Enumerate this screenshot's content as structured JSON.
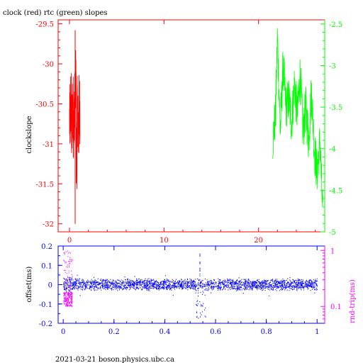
{
  "charts": {
    "clock_rtc_slopes": {
      "type": "line",
      "title": "clock (red) rtc (green) slopes",
      "xlabel": "",
      "ylabel": "clockslope",
      "xlim": [
        -1.2,
        27
      ],
      "xticks": [
        "0",
        "10",
        "20"
      ],
      "xtick_values": [
        0,
        10,
        20
      ],
      "ylim_left": [
        -32.1,
        -29.45
      ],
      "yticks_left": [
        "-29.5",
        "-30",
        "-30.5",
        "-31",
        "-31.5",
        "-32"
      ],
      "ytick_values_left": [
        -29.5,
        -30,
        -30.5,
        -31,
        -31.5,
        -32
      ],
      "ylim_right": [
        -5.0,
        -2.45
      ],
      "yticks_right": [
        "-2.5",
        "-3",
        "-3.5",
        "-4",
        "-4.5",
        "-5"
      ],
      "ytick_values_right": [
        -2.5,
        -3,
        -3.5,
        -4,
        -4.5,
        -5
      ],
      "grid": false,
      "series": [
        {
          "name": "clock",
          "color": "#ff0000",
          "axis": "left",
          "x": [
            0.0,
            0.1,
            0.2,
            0.3,
            0.4,
            0.5,
            0.55,
            0.6,
            0.7,
            0.8,
            0.9,
            1.0,
            1.1
          ],
          "y": [
            -30.8,
            -30.2,
            -31.1,
            -30.4,
            -30.9,
            -30.3,
            -29.58,
            -32.0,
            -30.5,
            -31.0,
            -30.4,
            -31.2,
            -30.3
          ]
        },
        {
          "name": "rtc",
          "color": "#00ff00",
          "axis": "right",
          "x": [
            21.5,
            21.8,
            22.0,
            22.3,
            22.6,
            22.9,
            23.2,
            23.5,
            23.8,
            24.1,
            24.4,
            24.7,
            25.0,
            25.3,
            25.6,
            25.9,
            26.2,
            26.5,
            26.8
          ],
          "y": [
            -3.9,
            -3.6,
            -2.65,
            -3.8,
            -3.0,
            -3.5,
            -3.4,
            -3.7,
            -3.2,
            -3.6,
            -3.1,
            -3.8,
            -3.5,
            -3.9,
            -3.3,
            -4.0,
            -4.3,
            -3.9,
            -4.85
          ]
        }
      ]
    },
    "offset_roundtrip": {
      "type": "scatter",
      "title": "",
      "xlabel": "",
      "ylabel_left": "offset(ms)",
      "ylabel_right": "rnd-trip(ms)",
      "xlim": [
        -0.02,
        1.03
      ],
      "xticks": [
        "0",
        "0.2",
        "0.4",
        "0.6",
        "0.8",
        "1"
      ],
      "xtick_values": [
        0,
        0.2,
        0.4,
        0.6,
        0.8,
        1.0
      ],
      "ylim_left": [
        -0.2,
        0.2
      ],
      "yticks_left": [
        "0.2",
        "0.1",
        "0",
        "-0.1",
        "-0.2"
      ],
      "ytick_values_left": [
        0.2,
        0.1,
        0,
        -0.1,
        -0.2
      ],
      "ylim_right_log": [
        0.05,
        1.2
      ],
      "yticks_right": [
        "1",
        "0.1"
      ],
      "ytick_values_right": [
        1,
        0.1
      ],
      "grid": false,
      "series": [
        {
          "name": "offset",
          "color": "#0000ff",
          "axis": "left",
          "x": [
            0.0,
            0.1,
            0.2,
            0.3,
            0.4,
            0.5,
            0.53,
            0.54,
            0.55,
            0.6,
            0.7,
            0.8,
            0.9,
            1.0
          ],
          "y": [
            0.0,
            0.0,
            0.0,
            0.0,
            0.0,
            0.0,
            -0.1,
            0.15,
            -0.03,
            0.0,
            0.0,
            0.0,
            0.0,
            0.0
          ],
          "spread": 0.02
        },
        {
          "name": "rnd-trip",
          "color": "#ff00ff",
          "axis": "right",
          "x": [
            0.0,
            0.01,
            0.02,
            0.025,
            0.03,
            0.035
          ],
          "y": [
            0.12,
            0.3,
            0.15,
            0.9,
            0.2,
            0.1
          ]
        }
      ]
    }
  },
  "footer": {
    "text": "2021-03-21 boson.physics.ubc.ca"
  },
  "colors": {
    "clock": "#ff0000",
    "rtc": "#00ff00",
    "offset": "#0000ff",
    "rndtrip": "#ff00ff",
    "axis_top": "#ff0000",
    "axis_right_top": "#00ff00",
    "axis_bottom": "#0000ff",
    "axis_right_bottom": "#ff00ff"
  }
}
